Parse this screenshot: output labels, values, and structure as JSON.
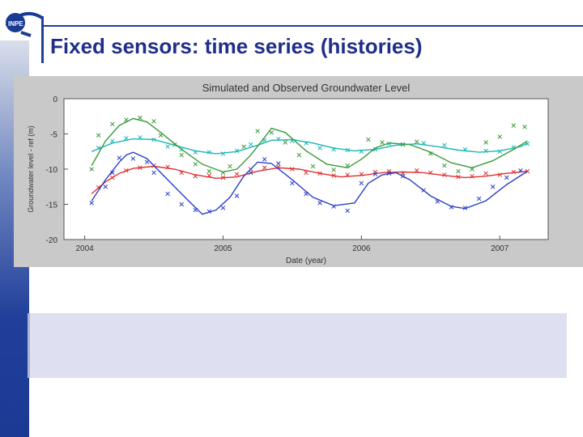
{
  "slide": {
    "title": "Fixed sensors: time series (histories)",
    "logo_text": "INPE"
  },
  "colors": {
    "title": "#1f2f8a",
    "accent": "#1f3f9a",
    "panel": "#c9c9c9",
    "text_box": "#dedff0"
  },
  "chart_data": {
    "type": "line",
    "title": "Simulated and Observed Groundwater Level",
    "xlabel": "Date (year)",
    "ylabel": "Groundwater level - ref (m)",
    "xlim": [
      2003.85,
      2007.35
    ],
    "ylim": [
      -20,
      0
    ],
    "x_ticks": [
      2004,
      2005,
      2006,
      2007
    ],
    "y_ticks": [
      0,
      -5,
      -10,
      -15,
      -20
    ],
    "grid": false,
    "legend": "none",
    "series": [
      {
        "color": "#1db6b6",
        "simulated": [
          [
            2004.05,
            -7.5
          ],
          [
            2004.2,
            -6.3
          ],
          [
            2004.35,
            -5.7
          ],
          [
            2004.5,
            -5.8
          ],
          [
            2004.65,
            -6.6
          ],
          [
            2004.8,
            -7.4
          ],
          [
            2004.95,
            -7.8
          ],
          [
            2005.1,
            -7.5
          ],
          [
            2005.25,
            -6.6
          ],
          [
            2005.35,
            -5.9
          ],
          [
            2005.5,
            -5.8
          ],
          [
            2005.65,
            -6.3
          ],
          [
            2005.8,
            -7.0
          ],
          [
            2005.95,
            -7.4
          ],
          [
            2006.1,
            -7.2
          ],
          [
            2006.25,
            -6.6
          ],
          [
            2006.4,
            -6.4
          ],
          [
            2006.55,
            -6.8
          ],
          [
            2006.7,
            -7.3
          ],
          [
            2006.85,
            -7.6
          ],
          [
            2007.0,
            -7.4
          ],
          [
            2007.15,
            -6.8
          ],
          [
            2007.2,
            -6.3
          ]
        ],
        "observed": [
          [
            2004.1,
            -7.0
          ],
          [
            2004.2,
            -6.0
          ],
          [
            2004.3,
            -5.6
          ],
          [
            2004.4,
            -5.5
          ],
          [
            2004.5,
            -5.8
          ],
          [
            2004.6,
            -6.8
          ],
          [
            2004.7,
            -7.2
          ],
          [
            2004.8,
            -7.6
          ],
          [
            2004.9,
            -7.6
          ],
          [
            2005.0,
            -7.8
          ],
          [
            2005.1,
            -7.4
          ],
          [
            2005.2,
            -6.5
          ],
          [
            2005.3,
            -5.9
          ],
          [
            2005.4,
            -5.7
          ],
          [
            2005.5,
            -6.0
          ],
          [
            2005.6,
            -6.3
          ],
          [
            2005.7,
            -7.0
          ],
          [
            2005.8,
            -7.2
          ],
          [
            2005.9,
            -7.3
          ],
          [
            2006.0,
            -7.5
          ],
          [
            2006.1,
            -7.2
          ],
          [
            2006.2,
            -6.4
          ],
          [
            2006.3,
            -6.5
          ],
          [
            2006.45,
            -6.3
          ],
          [
            2006.6,
            -6.6
          ],
          [
            2006.75,
            -7.2
          ],
          [
            2006.9,
            -7.4
          ],
          [
            2007.0,
            -7.5
          ],
          [
            2007.1,
            -6.9
          ],
          [
            2007.2,
            -6.4
          ]
        ]
      },
      {
        "color": "#3a9a3a",
        "simulated": [
          [
            2004.05,
            -9.5
          ],
          [
            2004.15,
            -6.0
          ],
          [
            2004.25,
            -3.8
          ],
          [
            2004.35,
            -2.8
          ],
          [
            2004.45,
            -3.3
          ],
          [
            2004.55,
            -4.8
          ],
          [
            2004.7,
            -7.2
          ],
          [
            2004.85,
            -9.3
          ],
          [
            2005.0,
            -10.4
          ],
          [
            2005.1,
            -10.0
          ],
          [
            2005.2,
            -8.0
          ],
          [
            2005.3,
            -5.5
          ],
          [
            2005.35,
            -4.2
          ],
          [
            2005.45,
            -4.8
          ],
          [
            2005.6,
            -7.4
          ],
          [
            2005.75,
            -9.3
          ],
          [
            2005.9,
            -9.8
          ],
          [
            2006.0,
            -8.6
          ],
          [
            2006.1,
            -7.0
          ],
          [
            2006.2,
            -6.3
          ],
          [
            2006.35,
            -6.5
          ],
          [
            2006.5,
            -7.6
          ],
          [
            2006.65,
            -9.1
          ],
          [
            2006.8,
            -9.8
          ],
          [
            2006.95,
            -8.8
          ],
          [
            2007.1,
            -7.2
          ],
          [
            2007.2,
            -6.0
          ]
        ],
        "observed": [
          [
            2004.05,
            -10.0
          ],
          [
            2004.1,
            -5.2
          ],
          [
            2004.2,
            -3.6
          ],
          [
            2004.3,
            -3.0
          ],
          [
            2004.4,
            -2.7
          ],
          [
            2004.5,
            -3.2
          ],
          [
            2004.55,
            -5.2
          ],
          [
            2004.65,
            -6.5
          ],
          [
            2004.7,
            -8.0
          ],
          [
            2004.8,
            -9.3
          ],
          [
            2004.9,
            -10.3
          ],
          [
            2005.0,
            -10.5
          ],
          [
            2005.05,
            -9.6
          ],
          [
            2005.15,
            -6.8
          ],
          [
            2005.25,
            -4.6
          ],
          [
            2005.35,
            -4.8
          ],
          [
            2005.45,
            -6.2
          ],
          [
            2005.55,
            -8.0
          ],
          [
            2005.65,
            -9.6
          ],
          [
            2005.8,
            -10.1
          ],
          [
            2005.9,
            -9.5
          ],
          [
            2006.05,
            -5.8
          ],
          [
            2006.15,
            -6.2
          ],
          [
            2006.3,
            -6.5
          ],
          [
            2006.4,
            -6.1
          ],
          [
            2006.5,
            -7.8
          ],
          [
            2006.6,
            -9.5
          ],
          [
            2006.7,
            -10.3
          ],
          [
            2006.8,
            -10.0
          ],
          [
            2006.9,
            -6.2
          ],
          [
            2007.0,
            -5.4
          ],
          [
            2007.1,
            -3.8
          ],
          [
            2007.18,
            -4.0
          ]
        ]
      },
      {
        "color": "#e03030",
        "simulated": [
          [
            2004.05,
            -13.5
          ],
          [
            2004.15,
            -11.8
          ],
          [
            2004.25,
            -10.6
          ],
          [
            2004.35,
            -9.9
          ],
          [
            2004.5,
            -9.6
          ],
          [
            2004.65,
            -10.0
          ],
          [
            2004.8,
            -10.8
          ],
          [
            2004.95,
            -11.3
          ],
          [
            2005.1,
            -11.1
          ],
          [
            2005.25,
            -10.3
          ],
          [
            2005.4,
            -9.8
          ],
          [
            2005.55,
            -10.0
          ],
          [
            2005.7,
            -10.6
          ],
          [
            2005.85,
            -11.1
          ],
          [
            2006.0,
            -10.9
          ],
          [
            2006.15,
            -10.5
          ],
          [
            2006.3,
            -10.4
          ],
          [
            2006.45,
            -10.5
          ],
          [
            2006.6,
            -10.9
          ],
          [
            2006.75,
            -11.2
          ],
          [
            2006.9,
            -11.0
          ],
          [
            2007.05,
            -10.6
          ],
          [
            2007.2,
            -10.3
          ]
        ],
        "observed": [
          [
            2004.1,
            -12.6
          ],
          [
            2004.2,
            -11.2
          ],
          [
            2004.3,
            -10.2
          ],
          [
            2004.4,
            -9.8
          ],
          [
            2004.5,
            -9.5
          ],
          [
            2004.6,
            -9.7
          ],
          [
            2004.7,
            -10.5
          ],
          [
            2004.8,
            -11.0
          ],
          [
            2004.9,
            -10.9
          ],
          [
            2005.0,
            -11.2
          ],
          [
            2005.1,
            -10.7
          ],
          [
            2005.2,
            -10.0
          ],
          [
            2005.3,
            -9.8
          ],
          [
            2005.4,
            -9.7
          ],
          [
            2005.5,
            -10.0
          ],
          [
            2005.6,
            -10.5
          ],
          [
            2005.7,
            -10.6
          ],
          [
            2005.8,
            -10.9
          ],
          [
            2005.9,
            -10.8
          ],
          [
            2006.0,
            -10.7
          ],
          [
            2006.1,
            -10.4
          ],
          [
            2006.2,
            -10.3
          ],
          [
            2006.3,
            -10.6
          ],
          [
            2006.4,
            -10.2
          ],
          [
            2006.5,
            -10.5
          ],
          [
            2006.6,
            -10.8
          ],
          [
            2006.7,
            -11.1
          ],
          [
            2006.8,
            -11.0
          ],
          [
            2006.9,
            -10.6
          ],
          [
            2007.0,
            -10.8
          ],
          [
            2007.1,
            -10.4
          ],
          [
            2007.2,
            -10.3
          ]
        ]
      },
      {
        "color": "#2a3fc8",
        "simulated": [
          [
            2004.05,
            -14.5
          ],
          [
            2004.15,
            -11.5
          ],
          [
            2004.25,
            -9.0
          ],
          [
            2004.3,
            -8.0
          ],
          [
            2004.35,
            -7.6
          ],
          [
            2004.45,
            -8.5
          ],
          [
            2004.6,
            -11.5
          ],
          [
            2004.75,
            -14.5
          ],
          [
            2004.85,
            -16.4
          ],
          [
            2004.95,
            -15.8
          ],
          [
            2005.05,
            -14.0
          ],
          [
            2005.15,
            -11.0
          ],
          [
            2005.25,
            -9.0
          ],
          [
            2005.35,
            -9.2
          ],
          [
            2005.5,
            -11.5
          ],
          [
            2005.65,
            -14.0
          ],
          [
            2005.8,
            -15.2
          ],
          [
            2005.95,
            -14.8
          ],
          [
            2006.05,
            -12.0
          ],
          [
            2006.15,
            -10.8
          ],
          [
            2006.25,
            -10.5
          ],
          [
            2006.35,
            -11.5
          ],
          [
            2006.5,
            -13.8
          ],
          [
            2006.65,
            -15.3
          ],
          [
            2006.75,
            -15.6
          ],
          [
            2006.9,
            -14.5
          ],
          [
            2007.05,
            -12.2
          ],
          [
            2007.2,
            -10.3
          ]
        ],
        "observed": [
          [
            2004.05,
            -14.8
          ],
          [
            2004.15,
            -12.5
          ],
          [
            2004.2,
            -10.5
          ],
          [
            2004.25,
            -8.4
          ],
          [
            2004.35,
            -8.5
          ],
          [
            2004.45,
            -9.0
          ],
          [
            2004.5,
            -10.5
          ],
          [
            2004.6,
            -13.5
          ],
          [
            2004.7,
            -15.0
          ],
          [
            2004.8,
            -15.8
          ],
          [
            2004.9,
            -16.0
          ],
          [
            2005.0,
            -15.5
          ],
          [
            2005.1,
            -13.8
          ],
          [
            2005.2,
            -10.5
          ],
          [
            2005.3,
            -8.6
          ],
          [
            2005.4,
            -9.2
          ],
          [
            2005.5,
            -12.0
          ],
          [
            2005.6,
            -13.5
          ],
          [
            2005.7,
            -14.8
          ],
          [
            2005.8,
            -15.3
          ],
          [
            2005.9,
            -15.9
          ],
          [
            2006.0,
            -12.0
          ],
          [
            2006.1,
            -10.7
          ],
          [
            2006.2,
            -10.6
          ],
          [
            2006.3,
            -11.0
          ],
          [
            2006.45,
            -13.0
          ],
          [
            2006.55,
            -14.6
          ],
          [
            2006.65,
            -15.4
          ],
          [
            2006.75,
            -15.5
          ],
          [
            2006.85,
            -14.2
          ],
          [
            2006.95,
            -12.5
          ],
          [
            2007.05,
            -11.2
          ],
          [
            2007.15,
            -10.2
          ]
        ]
      }
    ]
  }
}
